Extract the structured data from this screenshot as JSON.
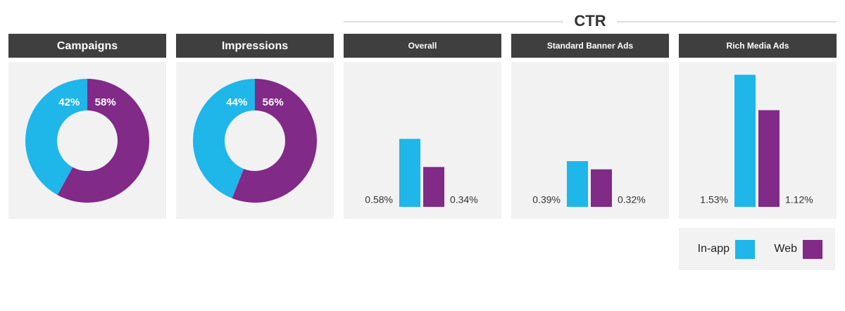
{
  "group_title": "CTR",
  "legend": [
    {
      "name": "In-app",
      "color": "#1fb6e9"
    },
    {
      "name": "Web",
      "color": "#812a88"
    }
  ],
  "chart_data": [
    {
      "type": "donut",
      "title": "Campaigns",
      "values": [
        42,
        58
      ],
      "value_labels": [
        "42%",
        "58%"
      ],
      "colors": [
        "#1fb6e9",
        "#812a88"
      ]
    },
    {
      "type": "donut",
      "title": "Impressions",
      "values": [
        44,
        56
      ],
      "value_labels": [
        "44%",
        "56%"
      ],
      "colors": [
        "#1fb6e9",
        "#812a88"
      ]
    },
    {
      "type": "bar",
      "title": "Overall",
      "values": [
        0.58,
        0.34
      ],
      "value_labels": [
        "0.58%",
        "0.34%"
      ],
      "colors": [
        "#1fb6e9",
        "#812a88"
      ],
      "ylim": [
        0,
        1.2
      ]
    },
    {
      "type": "bar",
      "title": "Standard Banner Ads",
      "values": [
        0.39,
        0.32
      ],
      "value_labels": [
        "0.39%",
        "0.32%"
      ],
      "colors": [
        "#1fb6e9",
        "#812a88"
      ],
      "ylim": [
        0,
        1.2
      ]
    },
    {
      "type": "bar",
      "title": "Rich Media Ads",
      "values": [
        1.53,
        1.12
      ],
      "value_labels": [
        "1.53%",
        "1.12%"
      ],
      "colors": [
        "#1fb6e9",
        "#812a88"
      ],
      "ylim": [
        0,
        1.63
      ]
    }
  ]
}
